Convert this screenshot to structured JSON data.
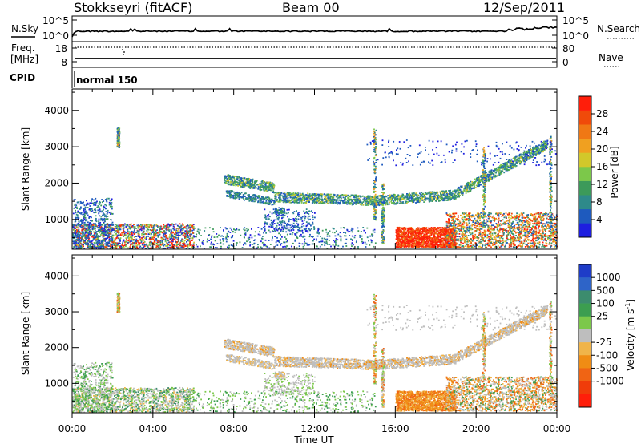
{
  "header": {
    "station": "Stokkseyri (fitACF)",
    "beam": "Beam 00",
    "date": "12/Sep/2011"
  },
  "chart_data": [
    {
      "type": "line",
      "panel": "noise",
      "left_label": "N.Sky",
      "right_label": "N.Search",
      "left_ticks": [
        "10^5",
        "10^0"
      ],
      "right_ticks": [
        "10^5",
        "10^0"
      ]
    },
    {
      "type": "line",
      "panel": "freq-nave",
      "left_label_top": "Freq.",
      "left_label_bottom": "[MHz]",
      "right_label": "Nave",
      "left_ticks": [
        "18",
        "8"
      ],
      "right_ticks": [
        "80",
        "0"
      ],
      "ylim_freq": [
        8,
        18
      ],
      "ylim_nave": [
        0,
        80
      ]
    },
    {
      "type": "table",
      "panel": "cpid",
      "label": "CPID",
      "value": "normal 150"
    },
    {
      "type": "heatmap",
      "panel": "power",
      "ylabel": "Slant Range [km]",
      "yticks": [
        1000,
        2000,
        3000,
        4000
      ],
      "ylim": [
        180,
        4590
      ],
      "colorbar_label": "Power [dB]",
      "colorbar_ticks": [
        "28",
        "24",
        "20",
        "16",
        "12",
        "8",
        "4"
      ],
      "colorbar_range": [
        0,
        32
      ],
      "colorbar_colors": [
        "#1e1ee0",
        "#1e5abe",
        "#2e8a8a",
        "#3c9a5a",
        "#7cc84a",
        "#d2c82a",
        "#f0a020",
        "#f07814",
        "#f04a0a",
        "#ff1e0a"
      ]
    },
    {
      "type": "heatmap",
      "panel": "velocity",
      "ylabel": "Slant Range [km]",
      "yticks": [
        1000,
        2000,
        3000,
        4000
      ],
      "ylim": [
        180,
        4590
      ],
      "colorbar_label": "Velocity [m s",
      "colorbar_label_sup": "-1",
      "colorbar_label_end": "]",
      "colorbar_ticks": [
        "1000",
        "500",
        "100",
        "25",
        "-25",
        "-100",
        "-500",
        "-1000"
      ],
      "colorbar_colors": [
        "#1e3cc8",
        "#2e64c8",
        "#3c8c6e",
        "#3c9e50",
        "#7cc84a",
        "#bebebe",
        "#f0b44a",
        "#f08c14",
        "#f06414",
        "#f03c0a",
        "#ff1e0a"
      ]
    }
  ],
  "xaxis": {
    "ticks": [
      "00:00",
      "04:00",
      "08:00",
      "12:00",
      "16:00",
      "20:00",
      "00:00"
    ],
    "xlim_hours": [
      0,
      24
    ],
    "label": "Time UT"
  }
}
